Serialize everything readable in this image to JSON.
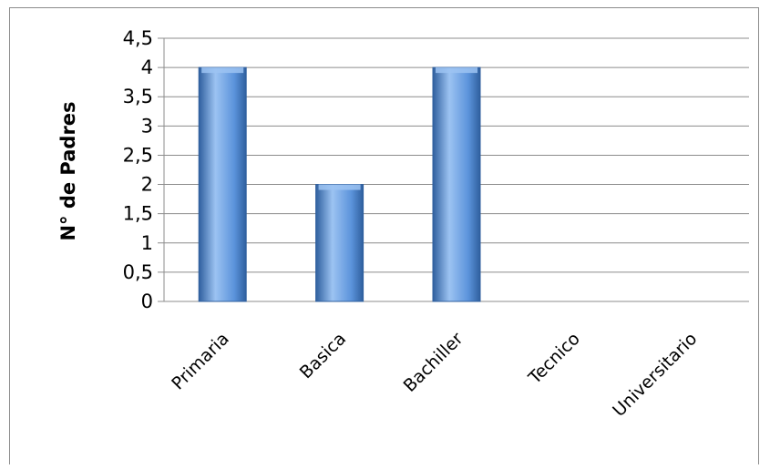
{
  "chart_data": {
    "type": "bar",
    "categories": [
      "Primaria",
      "Basica",
      "Bachiller",
      "Tecnico",
      "Universitario"
    ],
    "values": [
      4,
      2,
      4,
      0,
      0
    ],
    "ylabel": "N° de Padres",
    "xlabel": "",
    "ylim": [
      0,
      4.5
    ],
    "yticks": [
      "0",
      "0,5",
      "1",
      "1,5",
      "2",
      "2,5",
      "3",
      "3,5",
      "4",
      "4,5"
    ],
    "grid": true,
    "legend": "none",
    "colors": {
      "bar_light": "#9cc3f2",
      "bar_mid": "#5b93db",
      "bar_dark": "#2f5f9e",
      "grid": "#8c8c8c",
      "axis": "#8c8c8c"
    }
  }
}
